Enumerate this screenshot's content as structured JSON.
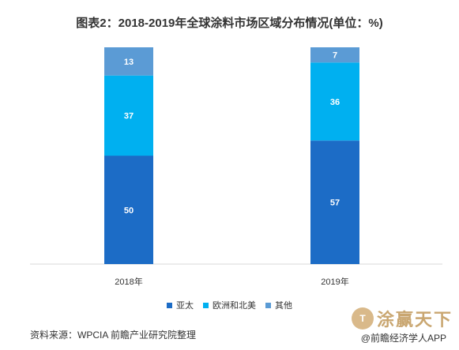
{
  "title": "图表2：2018-2019年全球涂料市场区域分布情况(单位：%)",
  "chart_data": {
    "type": "bar",
    "stacked": true,
    "categories": [
      "2018年",
      "2019年"
    ],
    "series": [
      {
        "name": "亚太",
        "values": [
          50,
          57
        ],
        "color": "#1c6cc6"
      },
      {
        "name": "欧洲和北美",
        "values": [
          37,
          36
        ],
        "color": "#00b0f0"
      },
      {
        "name": "其他",
        "values": [
          13,
          7
        ],
        "color": "#5b9bd5"
      }
    ],
    "ylim": [
      0,
      100
    ],
    "grid": false,
    "legend_position": "bottom"
  },
  "source": "资料来源：WPCIA 前瞻产业研究院整理",
  "brand": {
    "name": "涂赢天下",
    "app_label": "@前瞻经济学人APP"
  }
}
